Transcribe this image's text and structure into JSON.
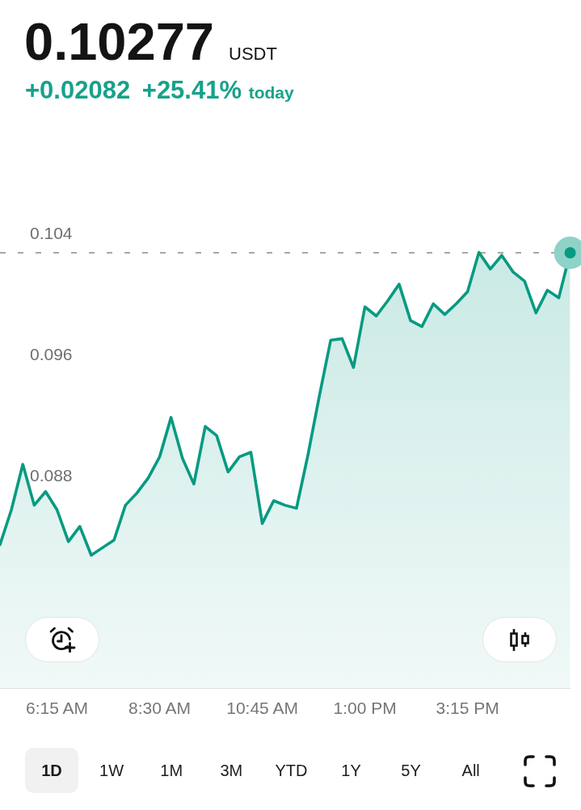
{
  "chart_data": {
    "type": "area",
    "title": "0.10277 USDT",
    "subtitle": "+0.02082 +25.41% today",
    "series": [
      {
        "color": "#079a82",
        "x": [
          5,
          5.25,
          5.5,
          5.75,
          6,
          6.25,
          6.5,
          6.75,
          7,
          7.25,
          7.5,
          7.75,
          8,
          8.25,
          8.5,
          8.75,
          9,
          9.25,
          9.5,
          9.75,
          10,
          10.25,
          10.5,
          10.75,
          11,
          11.25,
          11.5,
          11.75,
          12,
          12.25,
          12.5,
          12.75,
          13,
          13.25,
          13.5,
          13.75,
          14,
          14.25,
          14.5,
          14.75,
          15,
          15.25,
          15.5,
          15.75,
          16,
          16.25,
          16.5,
          16.75,
          17,
          17.25,
          17.5
        ],
        "values": [
          0.0835,
          0.0858,
          0.0888,
          0.0861,
          0.087,
          0.0858,
          0.0837,
          0.0847,
          0.0828,
          0.0833,
          0.0838,
          0.0861,
          0.0869,
          0.0879,
          0.0893,
          0.0919,
          0.0892,
          0.0875,
          0.0913,
          0.0907,
          0.0883,
          0.0893,
          0.0896,
          0.0849,
          0.0864,
          0.0861,
          0.0859,
          0.0894,
          0.0933,
          0.097,
          0.0971,
          0.0952,
          0.0992,
          0.0986,
          0.0996,
          0.1007,
          0.0983,
          0.0979,
          0.0994,
          0.0987,
          0.0994,
          0.1002,
          0.1028,
          0.1017,
          0.1026,
          0.1015,
          0.1009,
          0.0988,
          0.1003,
          0.0998,
          0.10277
        ]
      },
      {
        "type": "scatter",
        "color": "#079a82",
        "marker": "circle",
        "x": [
          17.5
        ],
        "values": [
          0.10277
        ]
      }
    ],
    "xlim": [
      5,
      17.5
    ],
    "xticks": [
      {
        "value": 6.25,
        "label": "6:15 AM"
      },
      {
        "value": 8.5,
        "label": "8:30 AM"
      },
      {
        "value": 10.75,
        "label": "10:45 AM"
      },
      {
        "value": 13,
        "label": "1:00 PM"
      },
      {
        "value": 15.25,
        "label": "3:15 PM"
      }
    ],
    "ylim": [
      0.074,
      0.104
    ],
    "yticks": [
      0.088,
      0.096,
      0.104
    ],
    "ref_lines": [
      {
        "axis": "y",
        "value": 0.10277,
        "color": "#8c8c8c",
        "line_style": "dashed"
      }
    ],
    "marker": "none",
    "line_style": "solid",
    "legend": false,
    "annotations": [
      "1D",
      "1W",
      "1M",
      "3M",
      "YTD",
      "1Y",
      "5Y",
      "All"
    ]
  }
}
